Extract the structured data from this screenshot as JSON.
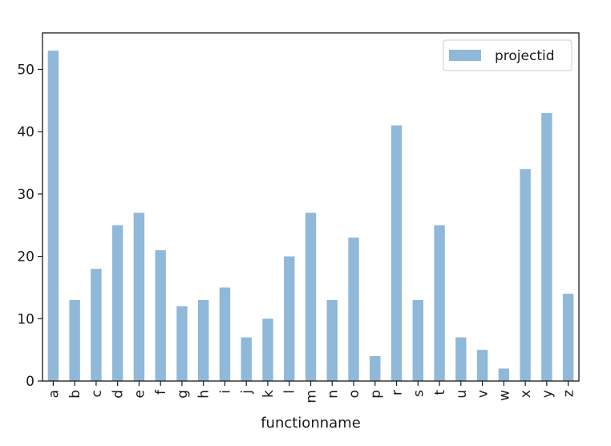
{
  "chart_data": {
    "type": "bar",
    "title": "",
    "xlabel": "functionname",
    "ylabel": "",
    "categories": [
      "a",
      "b",
      "c",
      "d",
      "e",
      "f",
      "g",
      "h",
      "i",
      "j",
      "k",
      "l",
      "m",
      "n",
      "o",
      "p",
      "r",
      "s",
      "t",
      "u",
      "v",
      "w",
      "x",
      "y",
      "z"
    ],
    "series": [
      {
        "name": "projectid",
        "color": "#8fb8d9",
        "values": [
          53,
          13,
          18,
          25,
          27,
          21,
          12,
          13,
          15,
          7,
          10,
          20,
          27,
          13,
          23,
          4,
          41,
          13,
          25,
          7,
          5,
          2,
          34,
          43,
          14
        ]
      }
    ],
    "ylim": [
      0,
      55
    ],
    "yticks": [
      0,
      10,
      20,
      30,
      40,
      50
    ],
    "grid": false,
    "legend_position": "top-right",
    "x_tick_rotation": "vertical"
  }
}
